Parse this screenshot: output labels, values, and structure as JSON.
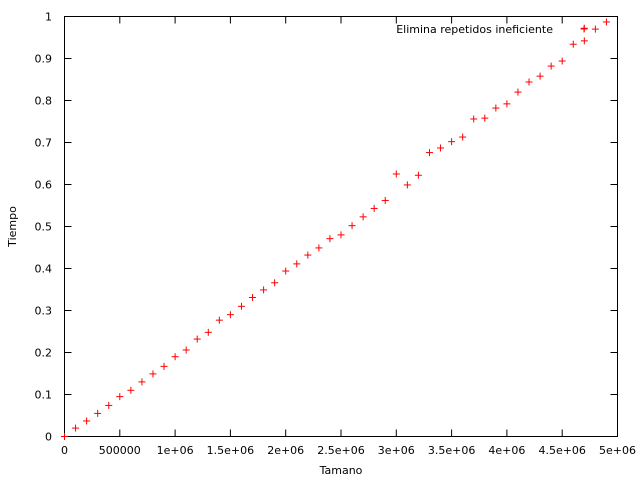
{
  "chart_data": {
    "type": "scatter",
    "title": "",
    "xlabel": "Tamano",
    "ylabel": "Tiempo",
    "xlim": [
      0,
      5000000
    ],
    "ylim": [
      0,
      1
    ],
    "xticks": [
      {
        "value": 0,
        "label": "0"
      },
      {
        "value": 500000,
        "label": "500000"
      },
      {
        "value": 1000000,
        "label": "1e+06"
      },
      {
        "value": 1500000,
        "label": "1.5e+06"
      },
      {
        "value": 2000000,
        "label": "2e+06"
      },
      {
        "value": 2500000,
        "label": "2.5e+06"
      },
      {
        "value": 3000000,
        "label": "3e+06"
      },
      {
        "value": 3500000,
        "label": "3.5e+06"
      },
      {
        "value": 4000000,
        "label": "4e+06"
      },
      {
        "value": 4500000,
        "label": "4.5e+06"
      },
      {
        "value": 5000000,
        "label": "5e+06"
      }
    ],
    "yticks": [
      {
        "value": 0,
        "label": "0"
      },
      {
        "value": 0.1,
        "label": "0.1"
      },
      {
        "value": 0.2,
        "label": "0.2"
      },
      {
        "value": 0.3,
        "label": "0.3"
      },
      {
        "value": 0.4,
        "label": "0.4"
      },
      {
        "value": 0.5,
        "label": "0.5"
      },
      {
        "value": 0.6,
        "label": "0.6"
      },
      {
        "value": 0.7,
        "label": "0.7"
      },
      {
        "value": 0.8,
        "label": "0.8"
      },
      {
        "value": 0.9,
        "label": "0.9"
      },
      {
        "value": 1,
        "label": "1"
      }
    ],
    "grid": false,
    "legend": {
      "placement": "top-right"
    },
    "series": [
      {
        "name": "Elimina repetidos ineficiente",
        "color": "#ff0000",
        "marker": "plus",
        "points": [
          [
            0,
            0.0
          ],
          [
            100000,
            0.02
          ],
          [
            200000,
            0.037
          ],
          [
            300000,
            0.055
          ],
          [
            400000,
            0.074
          ],
          [
            500000,
            0.095
          ],
          [
            600000,
            0.11
          ],
          [
            700000,
            0.13
          ],
          [
            800000,
            0.149
          ],
          [
            900000,
            0.167
          ],
          [
            1000000,
            0.19
          ],
          [
            1100000,
            0.206
          ],
          [
            1200000,
            0.232
          ],
          [
            1300000,
            0.248
          ],
          [
            1400000,
            0.277
          ],
          [
            1500000,
            0.29
          ],
          [
            1600000,
            0.31
          ],
          [
            1700000,
            0.331
          ],
          [
            1800000,
            0.349
          ],
          [
            1900000,
            0.366
          ],
          [
            2000000,
            0.394
          ],
          [
            2100000,
            0.411
          ],
          [
            2200000,
            0.432
          ],
          [
            2300000,
            0.449
          ],
          [
            2400000,
            0.471
          ],
          [
            2500000,
            0.48
          ],
          [
            2600000,
            0.502
          ],
          [
            2700000,
            0.523
          ],
          [
            2800000,
            0.543
          ],
          [
            2900000,
            0.562
          ],
          [
            3000000,
            0.625
          ],
          [
            3100000,
            0.599
          ],
          [
            3200000,
            0.622
          ],
          [
            3300000,
            0.676
          ],
          [
            3400000,
            0.687
          ],
          [
            3500000,
            0.702
          ],
          [
            3600000,
            0.713
          ],
          [
            3700000,
            0.756
          ],
          [
            3800000,
            0.758
          ],
          [
            3900000,
            0.782
          ],
          [
            4000000,
            0.792
          ],
          [
            4100000,
            0.82
          ],
          [
            4200000,
            0.844
          ],
          [
            4300000,
            0.858
          ],
          [
            4400000,
            0.882
          ],
          [
            4500000,
            0.894
          ],
          [
            4600000,
            0.934
          ],
          [
            4700000,
            0.972
          ],
          [
            4700000,
            0.942
          ],
          [
            4800000,
            0.97
          ],
          [
            4900000,
            0.987
          ]
        ]
      }
    ]
  }
}
